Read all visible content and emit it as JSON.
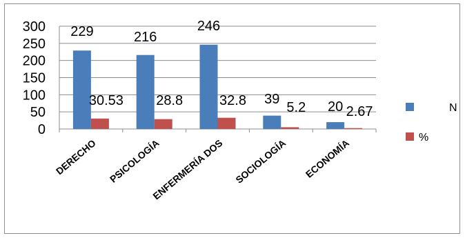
{
  "chart_data": {
    "type": "bar",
    "categories": [
      "DERECHO",
      "PSICOLOGÍA",
      "ENFERMERÍA DOS",
      "SOCIOLOGÍA",
      "ECONOMÍA"
    ],
    "series": [
      {
        "name": "N",
        "values": [
          229,
          216,
          246,
          39,
          20
        ],
        "labels": [
          "229",
          "216",
          "246",
          "39",
          "20"
        ],
        "color": "#4a7ebb"
      },
      {
        "name": "%",
        "values": [
          30.53,
          28.8,
          32.8,
          5.2,
          2.67
        ],
        "labels": [
          "30.53",
          "28.8",
          "32.8",
          "5.2",
          "2.67"
        ],
        "color": "#c0504d"
      }
    ],
    "yticks": [
      "0",
      "50",
      "100",
      "150",
      "200",
      "250",
      "300"
    ],
    "ylim": [
      0,
      300
    ],
    "grid": true,
    "legend_position": "right"
  }
}
